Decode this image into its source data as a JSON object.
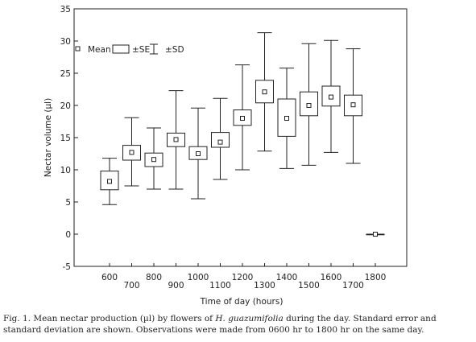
{
  "chart_data": {
    "type": "box",
    "xlabel": "Time of day (hours)",
    "ylabel": "Nectar volume (µl)",
    "ylim": [
      -5,
      35
    ],
    "yticks": [
      -5,
      0,
      5,
      10,
      15,
      20,
      25,
      30,
      35
    ],
    "categories": [
      "600",
      "700",
      "800",
      "900",
      "1000",
      "1100",
      "1200",
      "1300",
      "1400",
      "1500",
      "1600",
      "1700",
      "1800"
    ],
    "mean": [
      8.2,
      12.7,
      11.6,
      14.7,
      12.5,
      14.3,
      18.0,
      22.1,
      18.0,
      20.0,
      21.3,
      20.1,
      0.0
    ],
    "se_low": [
      6.9,
      11.5,
      10.5,
      13.6,
      11.6,
      13.5,
      16.9,
      20.4,
      15.2,
      18.4,
      19.9,
      18.4,
      0.0
    ],
    "se_high": [
      9.8,
      13.8,
      12.6,
      15.7,
      13.6,
      15.8,
      19.3,
      23.9,
      21.0,
      22.1,
      23.0,
      21.6,
      0.0
    ],
    "sd_low": [
      4.6,
      7.5,
      7.0,
      7.0,
      5.5,
      8.5,
      10.0,
      12.9,
      10.2,
      10.7,
      12.7,
      11.0,
      0.0
    ],
    "sd_high": [
      11.8,
      18.1,
      16.5,
      22.3,
      19.6,
      21.1,
      26.3,
      31.3,
      25.8,
      29.6,
      30.1,
      28.8,
      0.0
    ],
    "legend": {
      "position": "top-left",
      "mean": "Mean",
      "se": "±SE",
      "sd": "±SD"
    },
    "grid": false
  },
  "caption": {
    "prefix": "Fig. 1. Mean nectar production (µl) by flowers of ",
    "species": "H. guazumifolia",
    "suffix": " during the day. Standard error and standard deviation are shown. Observations were made from 0600 hr to 1800 hr on the same day."
  }
}
